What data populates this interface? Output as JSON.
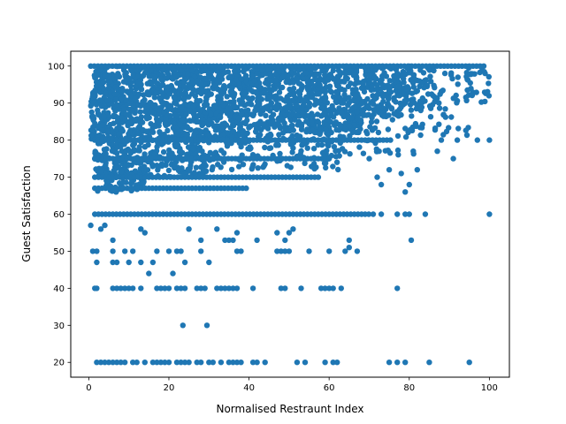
{
  "chart_data": {
    "type": "scatter",
    "title": "",
    "xlabel": "Normalised Restraunt Index",
    "ylabel": "Guest Satisfaction",
    "xlim": [
      -4.5,
      105
    ],
    "ylim": [
      16,
      104
    ],
    "xticks": [
      0,
      20,
      40,
      60,
      80,
      100
    ],
    "yticks": [
      20,
      30,
      40,
      50,
      60,
      70,
      80,
      90,
      100
    ],
    "grid": false,
    "marker_color": "#1f77b4",
    "series": [
      {
        "dense_bands": [
          {
            "x": [
              0.5,
              40
            ],
            "y": [
              80,
              100
            ],
            "n": 1100
          },
          {
            "x": [
              40,
              68
            ],
            "y": [
              82,
              100
            ],
            "n": 600
          },
          {
            "x": [
              68,
              78
            ],
            "y": [
              86,
              100
            ],
            "n": 160
          },
          {
            "x": [
              78,
              86
            ],
            "y": [
              88,
              100
            ],
            "n": 80
          },
          {
            "x": [
              86,
              100
            ],
            "y": [
              90,
              100
            ],
            "n": 50
          },
          {
            "x": [
              1.5,
              30
            ],
            "y": [
              70,
              80
            ],
            "n": 260
          },
          {
            "x": [
              30,
              64
            ],
            "y": [
              72,
              82
            ],
            "n": 140
          },
          {
            "x": [
              2,
              14
            ],
            "y": [
              66,
              72
            ],
            "n": 50
          },
          {
            "x": [
              64,
              84
            ],
            "y": [
              76,
              86
            ],
            "n": 40
          },
          {
            "x": [
              80,
              95
            ],
            "y": [
              80,
              92
            ],
            "n": 25
          }
        ],
        "rows": [
          {
            "y": 100,
            "x": [
              0.5,
              99
            ]
          },
          {
            "y": 80,
            "x": [
              1.5,
              76
            ]
          },
          {
            "y": 75,
            "x": [
              1.5,
              60
            ]
          },
          {
            "y": 70,
            "x": [
              1.5,
              58
            ]
          },
          {
            "y": 67,
            "x": [
              1.5,
              40
            ]
          },
          {
            "y": 60,
            "x": [
              1.5,
              70
            ]
          }
        ],
        "sparse_points": [
          [
            2,
            20
          ],
          [
            3,
            20
          ],
          [
            4,
            20
          ],
          [
            5,
            20
          ],
          [
            6,
            20
          ],
          [
            7,
            20
          ],
          [
            8,
            20
          ],
          [
            9,
            20
          ],
          [
            11,
            20
          ],
          [
            12,
            20
          ],
          [
            14,
            20
          ],
          [
            16,
            20
          ],
          [
            17,
            20
          ],
          [
            18,
            20
          ],
          [
            19,
            20
          ],
          [
            20,
            20
          ],
          [
            22,
            20
          ],
          [
            23,
            20
          ],
          [
            24,
            20
          ],
          [
            25,
            20
          ],
          [
            27,
            20
          ],
          [
            28,
            20
          ],
          [
            30,
            20
          ],
          [
            31,
            20
          ],
          [
            33,
            20
          ],
          [
            35,
            20
          ],
          [
            36,
            20
          ],
          [
            37,
            20
          ],
          [
            38,
            20
          ],
          [
            41,
            20
          ],
          [
            42,
            20
          ],
          [
            44,
            20
          ],
          [
            52,
            20
          ],
          [
            54,
            20
          ],
          [
            59,
            20
          ],
          [
            61,
            20
          ],
          [
            62,
            20
          ],
          [
            75,
            20
          ],
          [
            77,
            20
          ],
          [
            79,
            20
          ],
          [
            85,
            20
          ],
          [
            95,
            20
          ],
          [
            23.5,
            30
          ],
          [
            29.5,
            30
          ],
          [
            1.5,
            40
          ],
          [
            2,
            40
          ],
          [
            6,
            40
          ],
          [
            7,
            40
          ],
          [
            8,
            40
          ],
          [
            9,
            40
          ],
          [
            10,
            40
          ],
          [
            11,
            40
          ],
          [
            13,
            40
          ],
          [
            17,
            40
          ],
          [
            18,
            40
          ],
          [
            19,
            40
          ],
          [
            20,
            40
          ],
          [
            22,
            40
          ],
          [
            23,
            40
          ],
          [
            24,
            40
          ],
          [
            27,
            40
          ],
          [
            28,
            40
          ],
          [
            29,
            40
          ],
          [
            32,
            40
          ],
          [
            33,
            40
          ],
          [
            34,
            40
          ],
          [
            35,
            40
          ],
          [
            36,
            40
          ],
          [
            37,
            40
          ],
          [
            41,
            40
          ],
          [
            48,
            40
          ],
          [
            49,
            40
          ],
          [
            53,
            40
          ],
          [
            58,
            40
          ],
          [
            59,
            40
          ],
          [
            60,
            40
          ],
          [
            61,
            40
          ],
          [
            63,
            40
          ],
          [
            77,
            40
          ],
          [
            1,
            50
          ],
          [
            2,
            50
          ],
          [
            6,
            50
          ],
          [
            9,
            50
          ],
          [
            11,
            50
          ],
          [
            17,
            50
          ],
          [
            20,
            50
          ],
          [
            22,
            50
          ],
          [
            23,
            50
          ],
          [
            28,
            50
          ],
          [
            37,
            50
          ],
          [
            38,
            50
          ],
          [
            47,
            50
          ],
          [
            48,
            50
          ],
          [
            49,
            50
          ],
          [
            50,
            50
          ],
          [
            55,
            50
          ],
          [
            60,
            50
          ],
          [
            64,
            50
          ],
          [
            67,
            50
          ],
          [
            2,
            47
          ],
          [
            6,
            47
          ],
          [
            7,
            47
          ],
          [
            10,
            47
          ],
          [
            13,
            47
          ],
          [
            16,
            47
          ],
          [
            24,
            47
          ],
          [
            30,
            47
          ],
          [
            0.5,
            57
          ],
          [
            3,
            56
          ],
          [
            4,
            57
          ],
          [
            13,
            56
          ],
          [
            14,
            55
          ],
          [
            25,
            56
          ],
          [
            28,
            53
          ],
          [
            32,
            56
          ],
          [
            34,
            53
          ],
          [
            35,
            53
          ],
          [
            36,
            53
          ],
          [
            37,
            55
          ],
          [
            42,
            53
          ],
          [
            47,
            55
          ],
          [
            49,
            53
          ],
          [
            50,
            55
          ],
          [
            51,
            56
          ],
          [
            65,
            53
          ],
          [
            65,
            51
          ],
          [
            80.5,
            53
          ],
          [
            21,
            44
          ],
          [
            15,
            44
          ],
          [
            6,
            53
          ],
          [
            71,
            60
          ],
          [
            73,
            60
          ],
          [
            77,
            60
          ],
          [
            79,
            60
          ],
          [
            80,
            60
          ],
          [
            84,
            60
          ],
          [
            100,
            60
          ],
          [
            81,
            77
          ],
          [
            82,
            72
          ],
          [
            87,
            77
          ],
          [
            88,
            80
          ],
          [
            97,
            80
          ],
          [
            100,
            80
          ],
          [
            91,
            75
          ],
          [
            72,
            70
          ],
          [
            73,
            68
          ],
          [
            79,
            66
          ],
          [
            80,
            68
          ],
          [
            78,
            71
          ],
          [
            75,
            72
          ],
          [
            70,
            75
          ],
          [
            92,
            80
          ]
        ]
      }
    ]
  }
}
